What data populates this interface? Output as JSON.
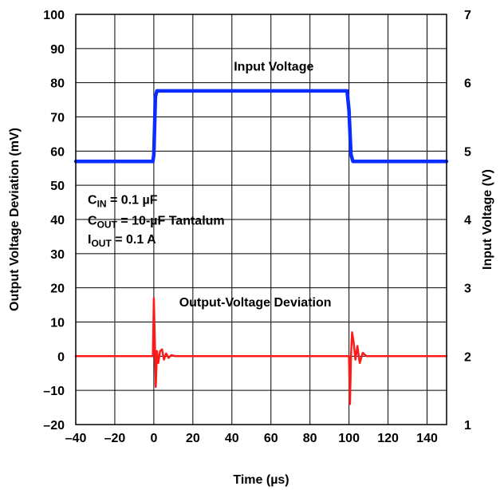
{
  "chart_data": {
    "type": "line",
    "x_axis": {
      "label": "Time (µs)",
      "range": [
        -40,
        150
      ],
      "ticks": [
        "–40",
        "–20",
        "0",
        "20",
        "40",
        "60",
        "80",
        "100",
        "120",
        "140"
      ]
    },
    "y_axis_left": {
      "label": "Output Voltage Deviation (mV)",
      "range": [
        -20,
        100
      ],
      "ticks": [
        "–20",
        "–10",
        "0",
        "10",
        "20",
        "30",
        "40",
        "50",
        "60",
        "70",
        "80",
        "90",
        "100"
      ]
    },
    "y_axis_right": {
      "label": "Input Voltage (V)",
      "range": [
        1,
        7
      ],
      "ticks": [
        "1",
        "2",
        "3",
        "4",
        "5",
        "6",
        "7"
      ]
    },
    "grid": true,
    "annotations": {
      "input_voltage_label": "Input Voltage",
      "output_deviation_label": "Output-Voltage Deviation",
      "conditions": [
        {
          "sym": "C",
          "sub": "IN",
          "rest": " = 0.1 µF"
        },
        {
          "sym": "C",
          "sub": "OUT",
          "rest": " = 10-µF Tantalum"
        },
        {
          "sym": "I",
          "sub": "OUT",
          "rest": " = 0.1 A"
        }
      ]
    },
    "series": [
      {
        "name": "Input Voltage",
        "axis": "right",
        "color": "#0a2cff",
        "x": [
          -40,
          -0.5,
          0,
          0.8,
          1.6,
          99,
          100,
          101,
          102,
          150
        ],
        "y": [
          4.85,
          4.85,
          4.95,
          5.8,
          5.88,
          5.88,
          5.6,
          4.95,
          4.85,
          4.85
        ]
      },
      {
        "name": "Output-Voltage Deviation",
        "axis": "left",
        "color": "#ff1a1a",
        "x": [
          -40,
          -0.5,
          0,
          0.5,
          1,
          1.6,
          2.3,
          3.2,
          4.2,
          5.2,
          6.3,
          7.5,
          9,
          11,
          150
        ],
        "y": [
          0,
          0,
          17,
          5,
          -9,
          1.5,
          -2,
          1.5,
          2,
          -1,
          0.8,
          -0.5,
          0.3,
          0,
          0
        ],
        "x2": [
          99,
          100,
          100.5,
          101,
          101.6,
          102.4,
          103.3,
          104.3,
          105.5,
          107,
          109,
          150
        ],
        "y2": [
          0,
          0,
          -14,
          0,
          7,
          4,
          -1,
          3,
          -2,
          1,
          0,
          0
        ]
      }
    ]
  }
}
